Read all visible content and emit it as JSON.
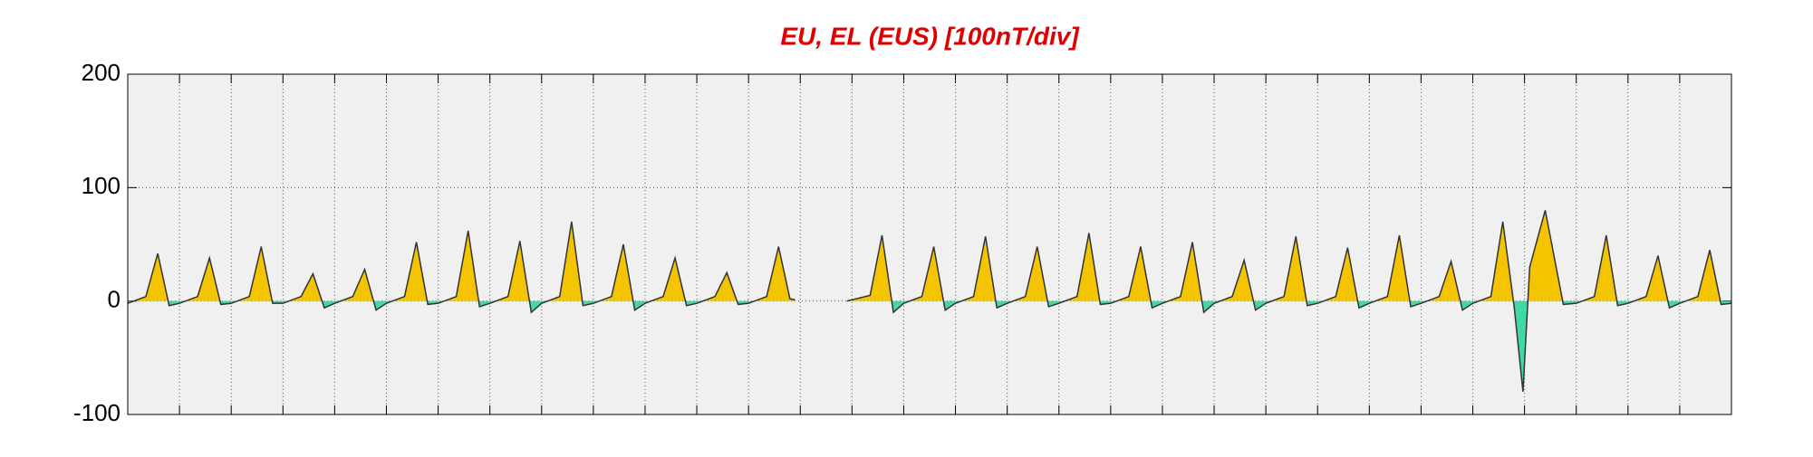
{
  "chart_data": {
    "type": "area",
    "title": "EU, EL (EUS)  [100nT/div]",
    "title_color": "#e00000",
    "x": [
      0,
      0.35,
      0.58,
      0.8,
      1,
      1.35,
      1.58,
      1.8,
      2,
      2.35,
      2.58,
      2.8,
      3,
      3.35,
      3.58,
      3.8,
      4,
      4.35,
      4.58,
      4.8,
      5,
      5.35,
      5.58,
      5.8,
      6,
      6.35,
      6.58,
      6.8,
      7,
      7.35,
      7.58,
      7.8,
      8,
      8.35,
      8.58,
      8.8,
      9,
      9.35,
      9.58,
      9.8,
      10,
      10.35,
      10.58,
      10.8,
      11,
      11.35,
      11.58,
      11.8,
      12,
      12.35,
      12.58,
      12.8,
      12.9,
      13.4,
      13.9,
      14.35,
      14.58,
      14.8,
      15,
      15.35,
      15.58,
      15.8,
      16,
      16.35,
      16.58,
      16.8,
      17,
      17.35,
      17.58,
      17.8,
      18,
      18.35,
      18.58,
      18.8,
      19,
      19.35,
      19.58,
      19.8,
      20,
      20.35,
      20.58,
      20.8,
      21,
      21.35,
      21.58,
      21.8,
      22,
      22.35,
      22.58,
      22.8,
      23,
      23.35,
      23.58,
      23.8,
      24,
      24.35,
      24.58,
      24.8,
      25,
      25.35,
      25.58,
      25.8,
      26,
      26.35,
      26.58,
      26.8,
      26.97,
      27.1,
      27.4,
      27.75,
      28,
      28.35,
      28.58,
      28.8,
      29,
      29.35,
      29.58,
      29.8,
      30,
      30.35,
      30.58,
      30.8,
      31
    ],
    "values": [
      -2,
      4,
      42,
      -4,
      -2,
      4,
      38,
      -3,
      -2,
      4,
      48,
      -2,
      -2,
      4,
      24,
      -6,
      -2,
      4,
      28,
      -8,
      -2,
      4,
      52,
      -3,
      -2,
      4,
      62,
      -5,
      -2,
      4,
      53,
      -10,
      -2,
      4,
      70,
      -4,
      -2,
      4,
      50,
      -8,
      -2,
      4,
      38,
      -4,
      -2,
      4,
      25,
      -3,
      -2,
      4,
      48,
      2,
      1,
      null,
      0,
      5,
      58,
      -10,
      -2,
      4,
      48,
      -8,
      -2,
      4,
      57,
      -6,
      -2,
      4,
      48,
      -5,
      -2,
      4,
      60,
      -3,
      -2,
      4,
      48,
      -6,
      -2,
      4,
      52,
      -10,
      -2,
      4,
      36,
      -8,
      -2,
      4,
      57,
      -4,
      -2,
      4,
      47,
      -6,
      -2,
      4,
      58,
      -5,
      -2,
      4,
      35,
      -8,
      -2,
      4,
      70,
      -5,
      -80,
      30,
      80,
      -3,
      -2,
      4,
      58,
      -4,
      -2,
      4,
      40,
      -6,
      -2,
      4,
      45,
      -3,
      -2
    ],
    "positive_color": "#f5c400",
    "negative_color": "#40d8a8",
    "line_color": "#333333",
    "xlim": [
      0,
      31
    ],
    "xticks": [
      1,
      2,
      3,
      4,
      5,
      6,
      7,
      8,
      9,
      10,
      11,
      12,
      13,
      14,
      15,
      16,
      17,
      18,
      19,
      20,
      21,
      22,
      23,
      24,
      25,
      26,
      27,
      28,
      29,
      30
    ],
    "ylim": [
      -100,
      200
    ],
    "yticks": [
      -100,
      0,
      100,
      200
    ],
    "grid": true
  }
}
